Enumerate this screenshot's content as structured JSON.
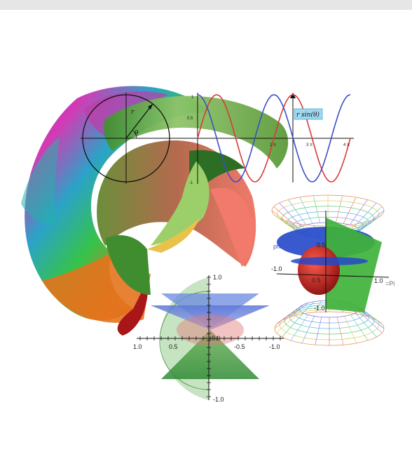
{
  "collage": {
    "top_plot": {
      "annotation": "r sin(θ)",
      "r_label": "r",
      "theta_label": "θ",
      "x_ticks": [
        "2 π",
        "3 π",
        "4 π"
      ],
      "y_ticks": [
        "1",
        "0.5",
        "-1"
      ],
      "sine_color": "#d83a3a",
      "cosine_color": "#3a4fc6"
    },
    "bottom_plot": {
      "top_tick": "1.0",
      "bottom_tick": "-1.0",
      "x_ticks": [
        "1.0",
        "0.5",
        "0.0",
        "-0.5",
        "-1.0"
      ]
    },
    "right_plot": {
      "phi_label": "phi",
      "x_tick_left": "-1.0",
      "x_tick_right": "1.0",
      "pi_label": "=Pi",
      "lower_tick": "-1.0",
      "tick_1": "0.5",
      "tick_2": "0.5"
    }
  }
}
